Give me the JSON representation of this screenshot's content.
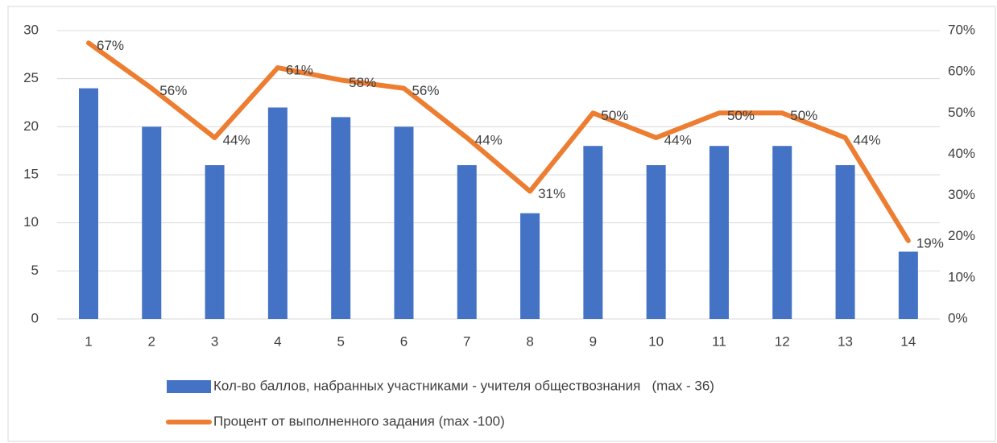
{
  "chart_data": {
    "type": "bar",
    "categories": [
      "1",
      "2",
      "3",
      "4",
      "5",
      "6",
      "7",
      "8",
      "9",
      "10",
      "11",
      "12",
      "13",
      "14"
    ],
    "series": [
      {
        "name": "Кол-во баллов, набранных участниками - учителя обществознания   (max - 36)",
        "type": "bar",
        "color": "#4472c4",
        "values": [
          24,
          20,
          16,
          22,
          21,
          20,
          16,
          11,
          18,
          16,
          18,
          18,
          16,
          7
        ]
      },
      {
        "name": "Процент от выполненного задания (max -100)",
        "type": "line",
        "axis": "y2",
        "color": "#ed7d31",
        "values": [
          67,
          56,
          44,
          61,
          58,
          56,
          44,
          31,
          50,
          44,
          50,
          50,
          44,
          19
        ],
        "value_labels": [
          "67%",
          "56%",
          "44%",
          "61%",
          "58%",
          "56%",
          "44%",
          "31%",
          "50%",
          "44%",
          "50%",
          "50%",
          "44%",
          "19%"
        ]
      }
    ],
    "ylim": [
      0,
      30
    ],
    "yticks": [
      0,
      5,
      10,
      15,
      20,
      25,
      30
    ],
    "y2lim": [
      0,
      70
    ],
    "y2ticks": [
      {
        "value": 0,
        "label": "0%"
      },
      {
        "value": 10,
        "label": "10%"
      },
      {
        "value": 20,
        "label": "20%"
      },
      {
        "value": 30,
        "label": "30%"
      },
      {
        "value": 40,
        "label": "40%"
      },
      {
        "value": 50,
        "label": "50%"
      },
      {
        "value": 60,
        "label": "60%"
      },
      {
        "value": 70,
        "label": "70%"
      }
    ],
    "grid": true
  }
}
